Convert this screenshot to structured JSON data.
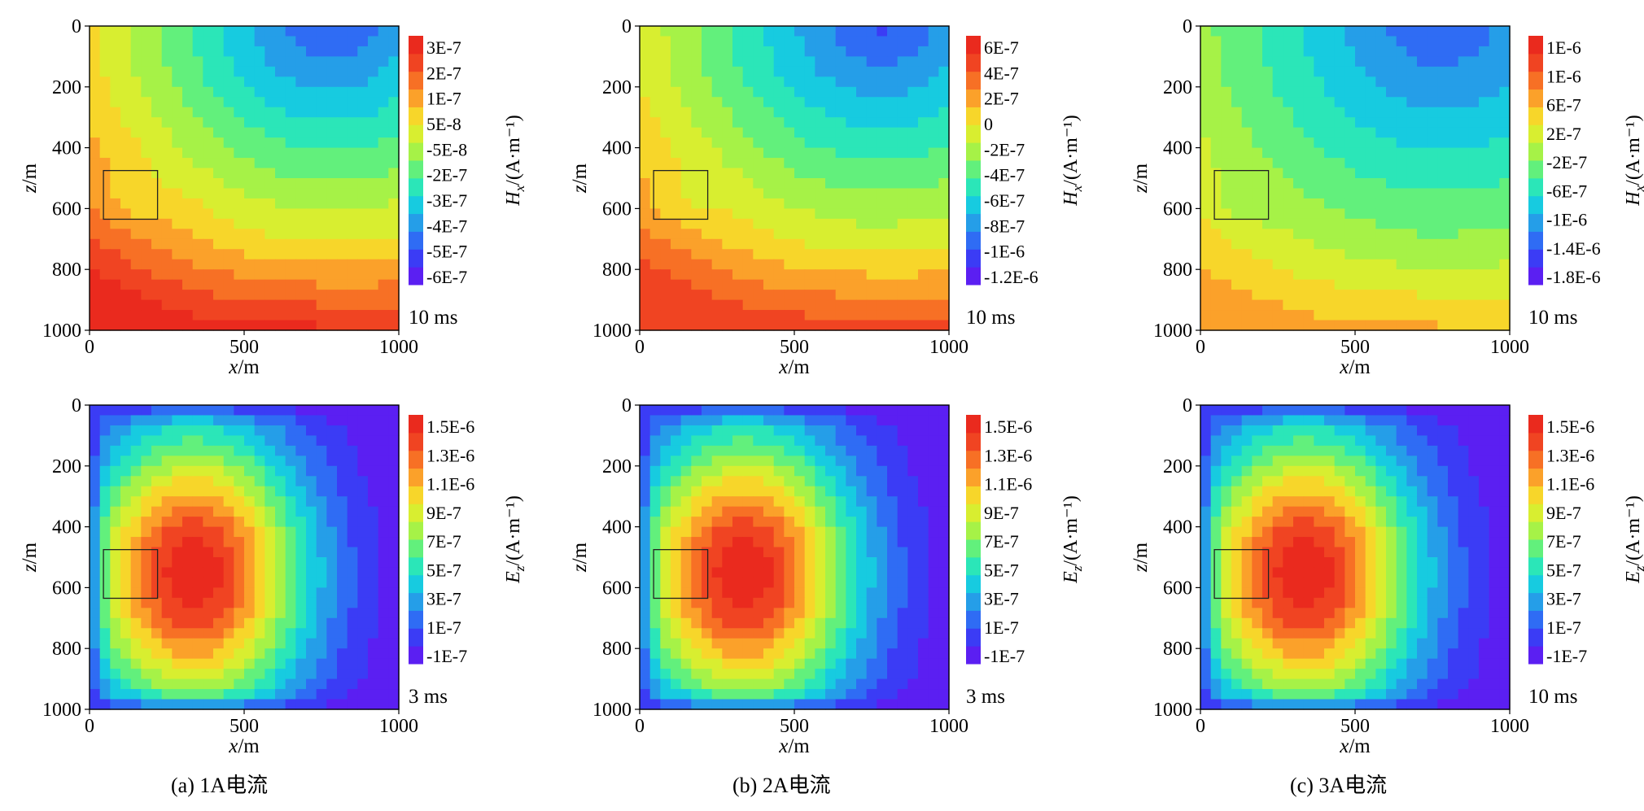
{
  "chart_data": [
    {
      "type": "heatmap",
      "panel": "a",
      "quantity": "Hx",
      "time_label": "10 ms",
      "xlabel": "x/m",
      "ylabel": "z/m",
      "xlim": [
        0,
        1000
      ],
      "ylim": [
        0,
        1000
      ],
      "x_ticks": [
        "0",
        "500",
        "1000"
      ],
      "y_ticks": [
        "0",
        "200",
        "400",
        "600",
        "800",
        "1000"
      ],
      "colorbar_label": "Hx/(A·m⁻¹)",
      "colorbar_ticks": [
        "3E-7",
        "2E-7",
        "1E-7",
        "5E-8",
        "-5E-8",
        "-2E-7",
        "-3E-7",
        "-4E-7",
        "-5E-7",
        "-6E-7"
      ],
      "anomaly_box": {
        "x": [
          45,
          220
        ],
        "z": [
          475,
          635
        ]
      }
    },
    {
      "type": "heatmap",
      "panel": "b",
      "quantity": "Hx",
      "time_label": "10 ms",
      "xlabel": "x/m",
      "ylabel": "z/m",
      "xlim": [
        0,
        1000
      ],
      "ylim": [
        0,
        1000
      ],
      "x_ticks": [
        "0",
        "500",
        "1000"
      ],
      "y_ticks": [
        "0",
        "200",
        "400",
        "600",
        "800",
        "1000"
      ],
      "colorbar_label": "Hx/(A·m⁻¹)",
      "colorbar_ticks": [
        "6E-7",
        "4E-7",
        "2E-7",
        "0",
        "-2E-7",
        "-4E-7",
        "-6E-7",
        "-8E-7",
        "-1E-6",
        "-1.2E-6"
      ],
      "anomaly_box": {
        "x": [
          45,
          220
        ],
        "z": [
          475,
          635
        ]
      }
    },
    {
      "type": "heatmap",
      "panel": "c",
      "quantity": "Hx",
      "time_label": "10 ms",
      "xlabel": "x/m",
      "ylabel": "z/m",
      "xlim": [
        0,
        1000
      ],
      "ylim": [
        0,
        1000
      ],
      "x_ticks": [
        "0",
        "500",
        "1000"
      ],
      "y_ticks": [
        "0",
        "200",
        "400",
        "600",
        "800",
        "1000"
      ],
      "colorbar_label": "Hx/(A·m⁻¹)",
      "colorbar_ticks": [
        "1E-6",
        "1E-6",
        "6E-7",
        "2E-7",
        "-2E-7",
        "-6E-7",
        "-1E-6",
        "-1.4E-6",
        "-1.8E-6"
      ],
      "anomaly_box": {
        "x": [
          45,
          220
        ],
        "z": [
          475,
          635
        ]
      }
    },
    {
      "type": "heatmap",
      "panel": "a",
      "quantity": "Ez",
      "time_label": "3 ms",
      "xlabel": "x/m",
      "ylabel": "z/m",
      "xlim": [
        0,
        1000
      ],
      "ylim": [
        0,
        1000
      ],
      "x_ticks": [
        "0",
        "500",
        "1000"
      ],
      "y_ticks": [
        "0",
        "200",
        "400",
        "600",
        "800",
        "1000"
      ],
      "colorbar_label": "Ez/(A·m⁻¹)",
      "colorbar_ticks": [
        "1.5E-6",
        "1.3E-6",
        "1.1E-6",
        "9E-7",
        "7E-7",
        "5E-7",
        "3E-7",
        "1E-7",
        "-1E-7"
      ],
      "anomaly_box": {
        "x": [
          45,
          220
        ],
        "z": [
          475,
          635
        ]
      }
    },
    {
      "type": "heatmap",
      "panel": "b",
      "quantity": "Ez",
      "time_label": "3 ms",
      "xlabel": "x/m",
      "ylabel": "z/m",
      "xlim": [
        0,
        1000
      ],
      "ylim": [
        0,
        1000
      ],
      "x_ticks": [
        "0",
        "500",
        "1000"
      ],
      "y_ticks": [
        "0",
        "200",
        "400",
        "600",
        "800",
        "1000"
      ],
      "colorbar_label": "Ez/(A·m⁻¹)",
      "colorbar_ticks": [
        "1.5E-6",
        "1.3E-6",
        "1.1E-6",
        "9E-7",
        "7E-7",
        "5E-7",
        "3E-7",
        "1E-7",
        "-1E-7"
      ],
      "anomaly_box": {
        "x": [
          45,
          220
        ],
        "z": [
          475,
          635
        ]
      }
    },
    {
      "type": "heatmap",
      "panel": "c",
      "quantity": "Ez",
      "time_label": "10 ms",
      "xlabel": "x/m",
      "ylabel": "z/m",
      "xlim": [
        0,
        1000
      ],
      "ylim": [
        0,
        1000
      ],
      "x_ticks": [
        "0",
        "500",
        "1000"
      ],
      "y_ticks": [
        "0",
        "200",
        "400",
        "600",
        "800",
        "1000"
      ],
      "colorbar_label": "Ez/(A·m⁻¹)",
      "colorbar_ticks": [
        "1.5E-6",
        "1.3E-6",
        "1.1E-6",
        "9E-7",
        "7E-7",
        "5E-7",
        "3E-7",
        "1E-7",
        "-1E-7"
      ],
      "anomaly_box": {
        "x": [
          45,
          220
        ],
        "z": [
          475,
          635
        ]
      }
    }
  ],
  "captions": [
    "(a) 1A电流",
    "(b) 2A电流",
    "(c) 3A电流"
  ],
  "colormap": [
    "#5b1ff2",
    "#3b3cf5",
    "#2f6cf4",
    "#259ee8",
    "#17cbe0",
    "#2be6b8",
    "#62f07c",
    "#a6f247",
    "#d8ee30",
    "#f7d62a",
    "#fba12a",
    "#f77025",
    "#f04422",
    "#ea2a1e"
  ]
}
